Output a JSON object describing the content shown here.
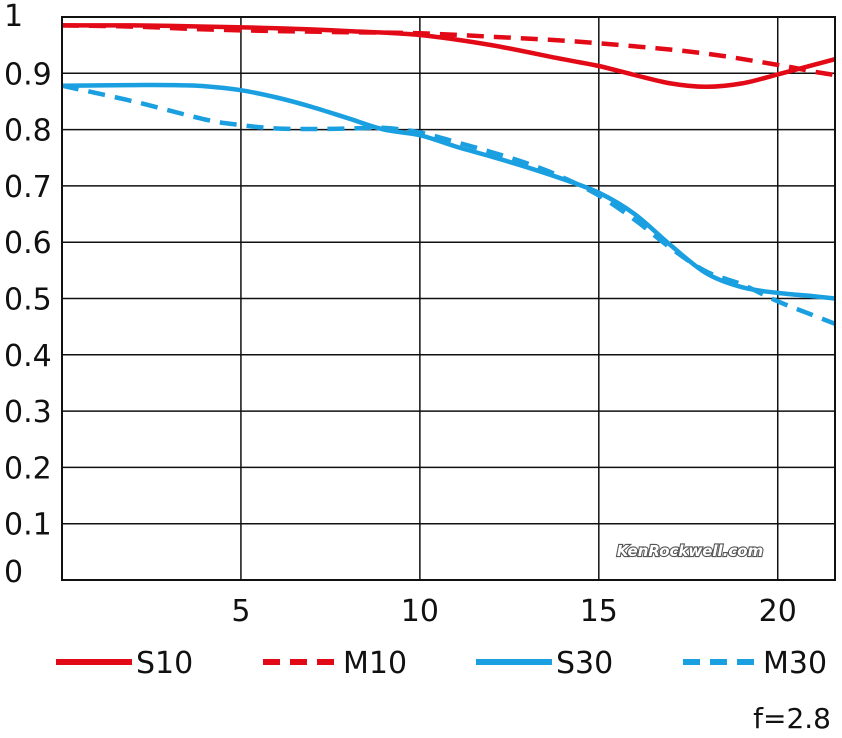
{
  "chart_data": {
    "type": "line",
    "xlim": [
      0,
      21.6
    ],
    "ylim": [
      0,
      1
    ],
    "x_ticks": [
      5,
      10,
      15,
      20
    ],
    "x_tick_labels": [
      "5",
      "10",
      "15",
      "20"
    ],
    "y_ticks": [
      0,
      0.1,
      0.2,
      0.3,
      0.4,
      0.5,
      0.6,
      0.7,
      0.8,
      0.9,
      1
    ],
    "y_tick_labels": [
      "0",
      "0.1",
      "0.2",
      "0.3",
      "0.4",
      "0.5",
      "0.6",
      "0.7",
      "0.8",
      "0.9",
      "1"
    ],
    "grid": true,
    "legend_placement": "bottom",
    "series": [
      {
        "name": "S10",
        "color": "#e30a17",
        "style": "solid",
        "x": [
          0,
          2,
          4,
          6,
          8,
          10,
          12,
          14,
          15,
          16,
          17,
          18,
          19,
          20,
          21,
          21.6
        ],
        "y": [
          0.985,
          0.985,
          0.983,
          0.98,
          0.975,
          0.968,
          0.95,
          0.925,
          0.913,
          0.897,
          0.882,
          0.876,
          0.882,
          0.898,
          0.915,
          0.925
        ]
      },
      {
        "name": "M10",
        "color": "#e30a17",
        "style": "dashed",
        "x": [
          0,
          2,
          4,
          6,
          8,
          10,
          12,
          14,
          16,
          18,
          20,
          21,
          21.6
        ],
        "y": [
          0.985,
          0.983,
          0.978,
          0.975,
          0.973,
          0.971,
          0.965,
          0.958,
          0.948,
          0.935,
          0.915,
          0.903,
          0.897
        ]
      },
      {
        "name": "S30",
        "color": "#1a9fe0",
        "style": "solid",
        "x": [
          0,
          2,
          3,
          4,
          5,
          6,
          7,
          8,
          9,
          10,
          11,
          12,
          13,
          14,
          15,
          16,
          17,
          18,
          19,
          20,
          21,
          21.6
        ],
        "y": [
          0.878,
          0.879,
          0.879,
          0.877,
          0.87,
          0.857,
          0.84,
          0.82,
          0.8,
          0.79,
          0.77,
          0.752,
          0.733,
          0.712,
          0.688,
          0.65,
          0.595,
          0.545,
          0.52,
          0.51,
          0.504,
          0.5
        ]
      },
      {
        "name": "M30",
        "color": "#1a9fe0",
        "style": "dashed",
        "x": [
          0,
          2,
          4,
          5,
          6,
          7,
          8,
          9,
          10,
          11,
          12,
          13,
          14,
          15,
          16,
          17,
          18,
          19,
          20,
          21,
          21.6
        ],
        "y": [
          0.878,
          0.85,
          0.818,
          0.808,
          0.802,
          0.801,
          0.802,
          0.803,
          0.795,
          0.778,
          0.76,
          0.74,
          0.715,
          0.683,
          0.64,
          0.59,
          0.548,
          0.525,
          0.495,
          0.47,
          0.455
        ]
      }
    ]
  },
  "watermark": "KenRockwell.com",
  "aperture_note": "f=2.8"
}
